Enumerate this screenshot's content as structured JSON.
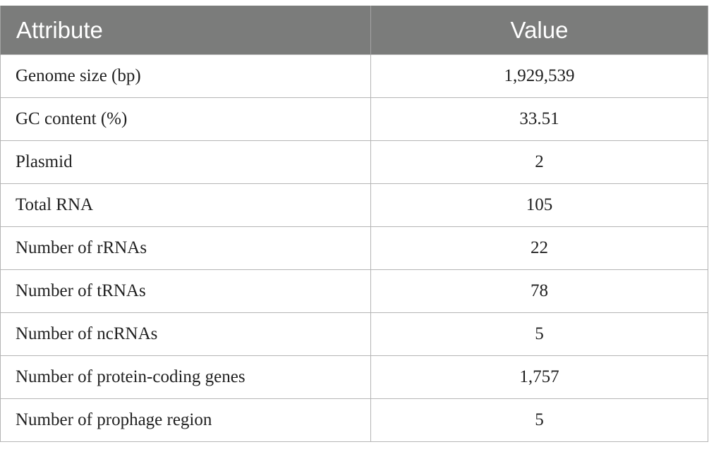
{
  "table": {
    "headers": [
      "Attribute",
      "Value"
    ],
    "rows": [
      [
        "Genome size (bp)",
        "1,929,539"
      ],
      [
        "GC content (%)",
        "33.51"
      ],
      [
        "Plasmid",
        "2"
      ],
      [
        "Total RNA",
        "105"
      ],
      [
        "Number of rRNAs",
        "22"
      ],
      [
        "Number of tRNAs",
        "78"
      ],
      [
        "Number of ncRNAs",
        "5"
      ],
      [
        "Number of protein-coding genes",
        "1,757"
      ],
      [
        "Number of prophage region",
        "5"
      ]
    ]
  },
  "colors": {
    "header_bg": "#7b7c7b",
    "header_text": "#ffffff",
    "grid": "#b5b5b5",
    "body_text": "#1f1f1f"
  }
}
